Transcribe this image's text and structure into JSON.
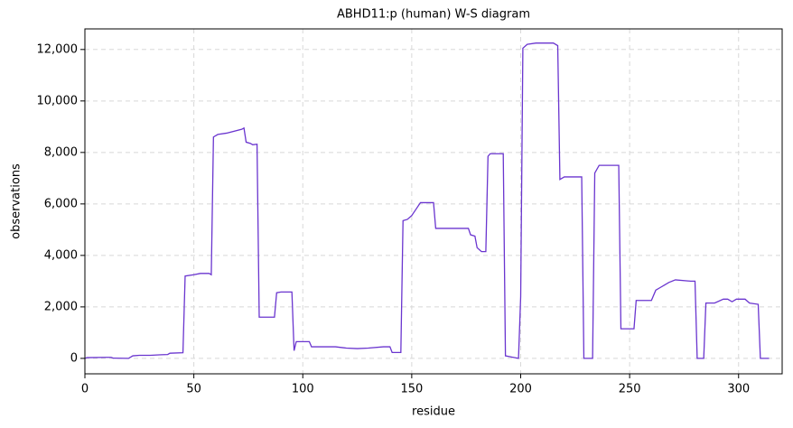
{
  "chart_data": {
    "type": "line",
    "title": "ABHD11:p (human) W-S diagram",
    "x_label": "residue",
    "y_label": "observations",
    "xlim": [
      0,
      320
    ],
    "ylim": [
      -600,
      12800
    ],
    "xticks": [
      0,
      50,
      100,
      150,
      200,
      250,
      300
    ],
    "yticks": [
      0,
      {
        "value": 2000,
        "label": "2,000"
      },
      {
        "value": 4000,
        "label": "4,000"
      },
      {
        "value": 6000,
        "label": "6,000"
      },
      {
        "value": 8000,
        "label": "8,000"
      },
      {
        "value": 10000,
        "label": "10,000"
      },
      {
        "value": 12000,
        "label": "12,000"
      }
    ],
    "grid": true,
    "x": [
      0,
      1,
      10,
      12,
      13,
      20,
      22,
      25,
      30,
      35,
      38,
      39,
      45,
      46,
      50,
      53,
      57,
      58,
      59,
      61,
      65,
      72,
      73,
      74,
      76,
      77,
      79,
      80,
      87,
      88,
      90,
      95,
      96,
      97,
      103,
      104,
      115,
      118,
      120,
      125,
      130,
      137,
      140,
      141,
      145,
      146,
      148,
      150,
      152,
      154,
      160,
      161,
      170,
      176,
      177,
      179,
      180,
      182,
      184,
      185,
      186,
      192,
      193,
      196,
      199,
      200,
      201,
      203,
      207,
      215,
      217,
      218,
      220,
      228,
      229,
      233,
      234,
      236,
      245,
      246,
      252,
      253,
      260,
      262,
      264,
      266,
      268,
      271,
      278,
      280,
      281,
      284,
      285,
      289,
      293,
      295,
      297,
      299,
      303,
      305,
      309,
      310,
      314
    ],
    "series": [
      {
        "name": "observations",
        "color": "#6a35cf",
        "values": [
          0,
          30,
          40,
          40,
          10,
          0,
          100,
          120,
          120,
          140,
          150,
          200,
          220,
          3200,
          3250,
          3300,
          3300,
          3250,
          8600,
          8700,
          8750,
          8900,
          8950,
          8400,
          8350,
          8300,
          8320,
          1600,
          1600,
          2550,
          2580,
          2580,
          300,
          650,
          650,
          450,
          450,
          420,
          400,
          380,
          400,
          450,
          450,
          230,
          230,
          5350,
          5400,
          5550,
          5800,
          6050,
          6050,
          5050,
          5050,
          5050,
          4800,
          4750,
          4300,
          4150,
          4150,
          7850,
          7950,
          7950,
          100,
          50,
          0,
          2400,
          12050,
          12200,
          12250,
          12250,
          12150,
          6950,
          7050,
          7050,
          0,
          0,
          7200,
          7500,
          7500,
          1150,
          1150,
          2250,
          2250,
          2650,
          2750,
          2850,
          2950,
          3050,
          3000,
          3000,
          0,
          0,
          2150,
          2150,
          2300,
          2300,
          2200,
          2300,
          2300,
          2150,
          2100,
          0,
          0
        ]
      }
    ]
  }
}
